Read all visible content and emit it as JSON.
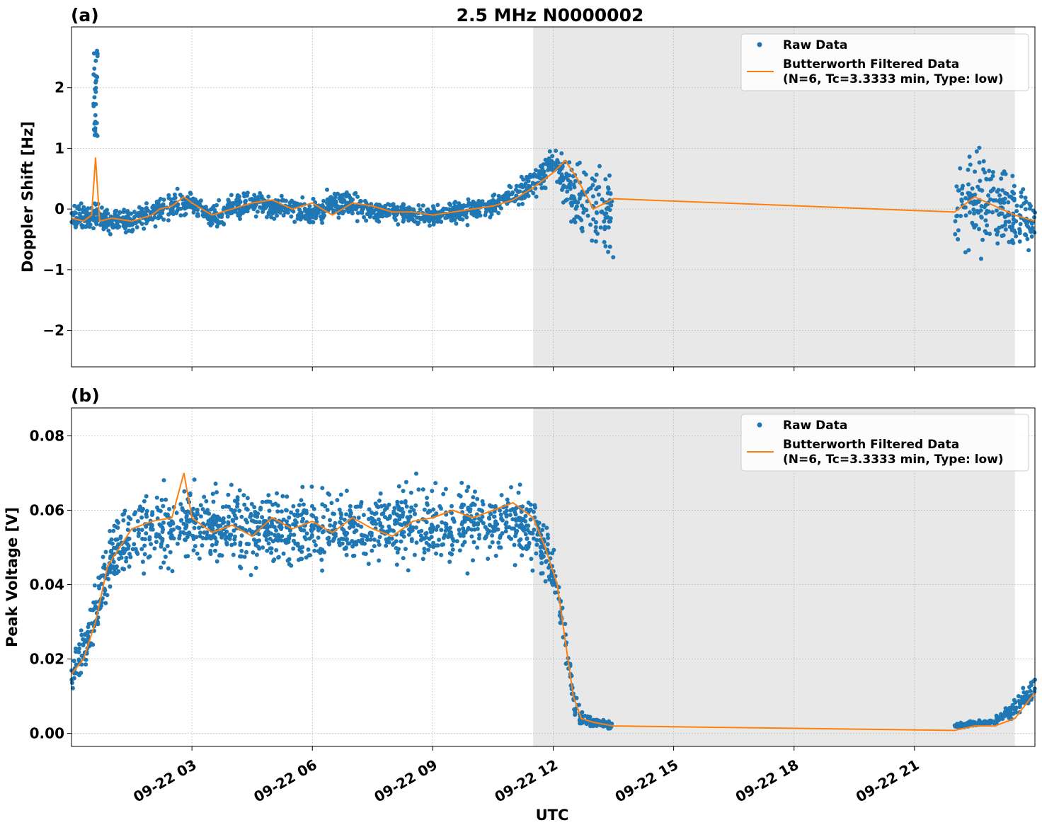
{
  "figure": {
    "title": "2.5 MHz N0000002",
    "xlabel": "UTC",
    "x_ticks": [
      "09-22 03",
      "09-22 06",
      "09-22 09",
      "09-22 12",
      "09-22 15",
      "09-22 18",
      "09-22 21"
    ],
    "colors": {
      "raw": "#1f77b4",
      "filtered": "#ff7f0e",
      "shade": "#e8e8e8",
      "grid": "#b0b0b0"
    }
  },
  "legend": {
    "raw_label": "Raw Data",
    "filtered_line1": "Butterworth Filtered Data",
    "filtered_line2": "(N=6, Tc=3.3333 min, Type: low)"
  },
  "chart_data": [
    {
      "type": "scatter",
      "panel_label": "(a)",
      "ylabel": "Doppler Shift [Hz]",
      "xlim": [
        "2023-09-22 00:00",
        "2023-09-23 00:00"
      ],
      "ylim": [
        -2.6,
        3.0
      ],
      "yticks": [
        -2,
        -1,
        0,
        1,
        2
      ],
      "ytick_labels": [
        "−2",
        "−1",
        "0",
        "1",
        "2"
      ],
      "grid": true,
      "legend_position": "top-right",
      "shaded_interval": [
        "2023-09-22 11:30",
        "2023-09-22 23:30"
      ],
      "series": [
        {
          "name": "Raw Data",
          "style": "dots",
          "band": [
            {
              "t": 0.0,
              "mid": -0.12,
              "spread": 0.32
            },
            {
              "t": 0.5,
              "mid": -0.15,
              "spread": 0.35
            },
            {
              "t": 1.0,
              "mid": -0.18,
              "spread": 0.32
            },
            {
              "t": 1.5,
              "mid": -0.2,
              "spread": 0.34
            },
            {
              "t": 2.0,
              "mid": -0.05,
              "spread": 0.3
            },
            {
              "t": 2.5,
              "mid": 0.05,
              "spread": 0.32
            },
            {
              "t": 3.0,
              "mid": 0.1,
              "spread": 0.32
            },
            {
              "t": 3.5,
              "mid": -0.15,
              "spread": 0.3
            },
            {
              "t": 4.0,
              "mid": 0.0,
              "spread": 0.32
            },
            {
              "t": 4.5,
              "mid": 0.12,
              "spread": 0.34
            },
            {
              "t": 5.0,
              "mid": 0.0,
              "spread": 0.32
            },
            {
              "t": 5.5,
              "mid": 0.05,
              "spread": 0.32
            },
            {
              "t": 6.0,
              "mid": -0.1,
              "spread": 0.3
            },
            {
              "t": 6.5,
              "mid": 0.1,
              "spread": 0.34
            },
            {
              "t": 7.0,
              "mid": 0.05,
              "spread": 0.32
            },
            {
              "t": 7.5,
              "mid": -0.05,
              "spread": 0.28
            },
            {
              "t": 8.0,
              "mid": -0.05,
              "spread": 0.26
            },
            {
              "t": 8.5,
              "mid": -0.08,
              "spread": 0.25
            },
            {
              "t": 9.0,
              "mid": -0.1,
              "spread": 0.24
            },
            {
              "t": 9.5,
              "mid": -0.05,
              "spread": 0.26
            },
            {
              "t": 10.0,
              "mid": 0.0,
              "spread": 0.28
            },
            {
              "t": 10.5,
              "mid": 0.05,
              "spread": 0.3
            },
            {
              "t": 11.0,
              "mid": 0.2,
              "spread": 0.35
            },
            {
              "t": 11.5,
              "mid": 0.4,
              "spread": 0.38
            },
            {
              "t": 12.0,
              "mid": 0.75,
              "spread": 0.4
            },
            {
              "t": 12.5,
              "mid": 0.3,
              "spread": 0.9
            },
            {
              "t": 13.0,
              "mid": -0.1,
              "spread": 1.1
            },
            {
              "t": 13.5,
              "mid": 0.0,
              "spread": 1.2
            },
            {
              "t": 22.0,
              "mid": 0.0,
              "spread": 1.3
            },
            {
              "t": 22.5,
              "mid": 0.2,
              "spread": 1.4
            },
            {
              "t": 23.0,
              "mid": 0.1,
              "spread": 1.2
            },
            {
              "t": 23.5,
              "mid": -0.1,
              "spread": 0.9
            },
            {
              "t": 24.0,
              "mid": -0.3,
              "spread": 0.6
            }
          ],
          "gaps": [
            [
              13.5,
              22.0
            ]
          ]
        },
        {
          "name": "Butterworth Filtered Data",
          "style": "line",
          "x": [
            0.0,
            0.3,
            0.5,
            0.6,
            0.7,
            1.0,
            1.5,
            2.0,
            2.2,
            2.5,
            2.8,
            3.0,
            3.5,
            4.0,
            4.5,
            5.0,
            5.5,
            6.0,
            6.5,
            7.0,
            7.5,
            8.0,
            8.5,
            9.0,
            9.5,
            10.0,
            10.5,
            11.0,
            11.5,
            12.0,
            12.3,
            12.6,
            13.0,
            13.5,
            22.0,
            22.5,
            23.0,
            23.5,
            24.0
          ],
          "y": [
            -0.15,
            -0.2,
            -0.1,
            0.85,
            -0.2,
            -0.15,
            -0.2,
            -0.1,
            0.0,
            0.05,
            0.2,
            0.1,
            -0.1,
            0.0,
            0.1,
            0.15,
            0.0,
            0.1,
            -0.1,
            0.1,
            0.05,
            -0.05,
            -0.05,
            -0.1,
            -0.05,
            0.0,
            0.05,
            0.15,
            0.35,
            0.6,
            0.8,
            0.5,
            0.0,
            0.17,
            -0.05,
            0.2,
            0.05,
            -0.1,
            -0.2
          ]
        }
      ]
    },
    {
      "type": "scatter",
      "panel_label": "(b)",
      "ylabel": "Peak Voltage [V]",
      "xlim": [
        "2023-09-22 00:00",
        "2023-09-23 00:00"
      ],
      "ylim": [
        -0.0035,
        0.0875
      ],
      "yticks": [
        0.0,
        0.02,
        0.04,
        0.06,
        0.08
      ],
      "ytick_labels": [
        "0.00",
        "0.02",
        "0.04",
        "0.06",
        "0.08"
      ],
      "grid": true,
      "legend_position": "top-right",
      "shaded_interval": [
        "2023-09-22 11:30",
        "2023-09-22 23:30"
      ],
      "series": [
        {
          "name": "Raw Data",
          "style": "dots",
          "band": [
            {
              "t": 0.0,
              "mid": 0.017,
              "spread": 0.009
            },
            {
              "t": 0.3,
              "mid": 0.022,
              "spread": 0.01
            },
            {
              "t": 0.6,
              "mid": 0.032,
              "spread": 0.012
            },
            {
              "t": 0.9,
              "mid": 0.045,
              "spread": 0.014
            },
            {
              "t": 1.2,
              "mid": 0.05,
              "spread": 0.015
            },
            {
              "t": 1.5,
              "mid": 0.052,
              "spread": 0.016
            },
            {
              "t": 2.0,
              "mid": 0.055,
              "spread": 0.016
            },
            {
              "t": 3.0,
              "mid": 0.056,
              "spread": 0.016
            },
            {
              "t": 4.0,
              "mid": 0.055,
              "spread": 0.016
            },
            {
              "t": 5.0,
              "mid": 0.055,
              "spread": 0.016
            },
            {
              "t": 6.0,
              "mid": 0.055,
              "spread": 0.016
            },
            {
              "t": 7.0,
              "mid": 0.055,
              "spread": 0.016
            },
            {
              "t": 8.0,
              "mid": 0.056,
              "spread": 0.016
            },
            {
              "t": 9.0,
              "mid": 0.056,
              "spread": 0.016
            },
            {
              "t": 10.0,
              "mid": 0.057,
              "spread": 0.015
            },
            {
              "t": 11.0,
              "mid": 0.057,
              "spread": 0.015
            },
            {
              "t": 11.5,
              "mid": 0.055,
              "spread": 0.014
            },
            {
              "t": 11.8,
              "mid": 0.05,
              "spread": 0.013
            },
            {
              "t": 12.1,
              "mid": 0.04,
              "spread": 0.012
            },
            {
              "t": 12.3,
              "mid": 0.025,
              "spread": 0.01
            },
            {
              "t": 12.5,
              "mid": 0.01,
              "spread": 0.006
            },
            {
              "t": 12.7,
              "mid": 0.004,
              "spread": 0.004
            },
            {
              "t": 13.0,
              "mid": 0.003,
              "spread": 0.002
            },
            {
              "t": 13.5,
              "mid": 0.002,
              "spread": 0.0015
            },
            {
              "t": 22.0,
              "mid": 0.0022,
              "spread": 0.001
            },
            {
              "t": 23.0,
              "mid": 0.003,
              "spread": 0.0015
            },
            {
              "t": 23.5,
              "mid": 0.007,
              "spread": 0.004
            },
            {
              "t": 24.0,
              "mid": 0.012,
              "spread": 0.006
            }
          ],
          "gaps": [
            [
              13.5,
              22.0
            ]
          ]
        },
        {
          "name": "Butterworth Filtered Data",
          "style": "line",
          "x": [
            0.0,
            0.3,
            0.6,
            0.9,
            1.2,
            1.5,
            2.0,
            2.5,
            2.8,
            3.0,
            3.5,
            4.0,
            4.5,
            5.0,
            5.5,
            6.0,
            6.5,
            7.0,
            7.5,
            8.0,
            8.5,
            9.0,
            9.5,
            10.0,
            10.5,
            11.0,
            11.5,
            11.8,
            12.1,
            12.3,
            12.5,
            12.7,
            13.0,
            13.5,
            22.0,
            22.5,
            23.0,
            23.5,
            24.0
          ],
          "y": [
            0.016,
            0.02,
            0.03,
            0.045,
            0.05,
            0.055,
            0.057,
            0.058,
            0.07,
            0.058,
            0.054,
            0.056,
            0.053,
            0.058,
            0.055,
            0.057,
            0.054,
            0.058,
            0.055,
            0.053,
            0.057,
            0.058,
            0.06,
            0.058,
            0.06,
            0.062,
            0.058,
            0.05,
            0.04,
            0.025,
            0.01,
            0.004,
            0.003,
            0.002,
            0.0008,
            0.002,
            0.002,
            0.004,
            0.011
          ]
        }
      ]
    }
  ]
}
